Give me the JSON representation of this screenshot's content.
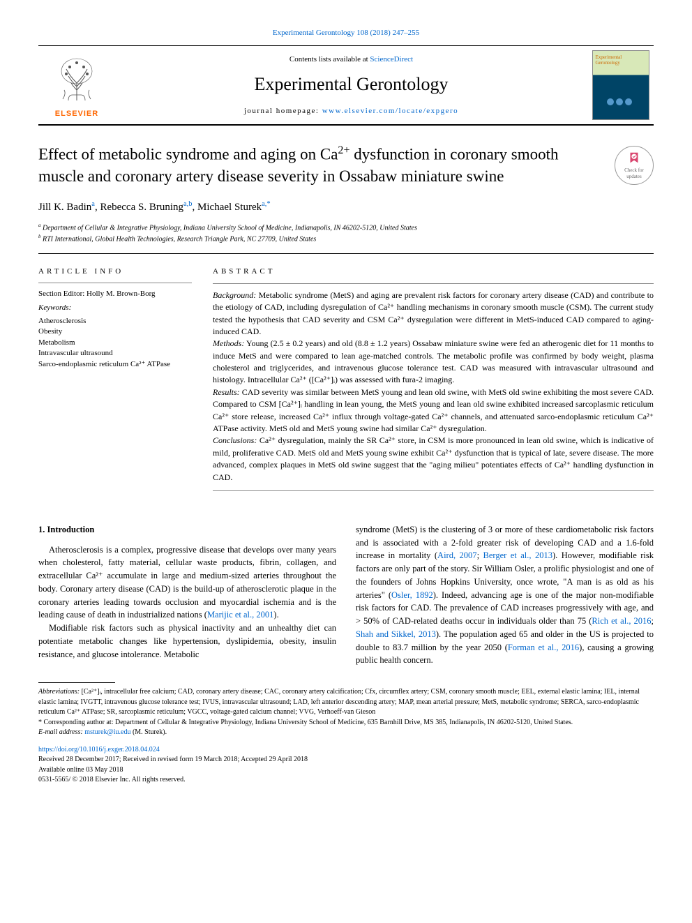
{
  "header": {
    "citation_prefix": "Experimental Gerontology 108 (2018) 247–255",
    "contents_prefix": "Contents lists available at ",
    "contents_link": "ScienceDirect",
    "journal_name": "Experimental Gerontology",
    "homepage_prefix": "journal homepage: ",
    "homepage_link": "www.elsevier.com/locate/expgero",
    "elsevier_word": "ELSEVIER",
    "cover_title": "Experimental Gerontology",
    "check_updates_line1": "Check for",
    "check_updates_line2": "updates"
  },
  "article": {
    "title_html": "Effect of metabolic syndrome and aging on Ca<sup>2+</sup> dysfunction in coronary smooth muscle and coronary artery disease severity in Ossabaw miniature swine",
    "authors_html": "Jill K. Badin<sup>a</sup>, Rebecca S. Bruning<sup>a,b</sup>, Michael Sturek<sup>a,*</sup>",
    "affiliations": [
      "Department of Cellular & Integrative Physiology, Indiana University School of Medicine, Indianapolis, IN 46202-5120, United States",
      "RTI International, Global Health Technologies, Research Triangle Park, NC 27709, United States"
    ],
    "affil_sups": [
      "a",
      "b"
    ]
  },
  "info": {
    "heading": "ARTICLE INFO",
    "section_editor_label": "Section Editor:",
    "section_editor": "Holly M. Brown-Borg",
    "keywords_label": "Keywords:",
    "keywords": [
      "Atherosclerosis",
      "Obesity",
      "Metabolism",
      "Intravascular ultrasound",
      "Sarco-endoplasmic reticulum Ca²⁺ ATPase"
    ]
  },
  "abstract": {
    "heading": "ABSTRACT",
    "background_label": "Background:",
    "background": "Metabolic syndrome (MetS) and aging are prevalent risk factors for coronary artery disease (CAD) and contribute to the etiology of CAD, including dysregulation of Ca²⁺ handling mechanisms in coronary smooth muscle (CSM). The current study tested the hypothesis that CAD severity and CSM Ca²⁺ dysregulation were different in MetS-induced CAD compared to aging-induced CAD.",
    "methods_label": "Methods:",
    "methods": "Young (2.5 ± 0.2 years) and old (8.8 ± 1.2 years) Ossabaw miniature swine were fed an atherogenic diet for 11 months to induce MetS and were compared to lean age-matched controls. The metabolic profile was confirmed by body weight, plasma cholesterol and triglycerides, and intravenous glucose tolerance test. CAD was measured with intravascular ultrasound and histology. Intracellular Ca²⁺ ([Ca²⁺]ᵢ) was assessed with fura-2 imaging.",
    "results_label": "Results:",
    "results": "CAD severity was similar between MetS young and lean old swine, with MetS old swine exhibiting the most severe CAD. Compared to CSM [Ca²⁺]ᵢ handling in lean young, the MetS young and lean old swine exhibited increased sarcoplasmic reticulum Ca²⁺ store release, increased Ca²⁺ influx through voltage-gated Ca²⁺ channels, and attenuated sarco-endoplasmic reticulum Ca²⁺ ATPase activity. MetS old and MetS young swine had similar Ca²⁺ dysregulation.",
    "conclusions_label": "Conclusions:",
    "conclusions": "Ca²⁺ dysregulation, mainly the SR Ca²⁺ store, in CSM is more pronounced in lean old swine, which is indicative of mild, proliferative CAD. MetS old and MetS young swine exhibit Ca²⁺ dysfunction that is typical of late, severe disease. The more advanced, complex plaques in MetS old swine suggest that the \"aging milieu\" potentiates effects of Ca²⁺ handling dysfunction in CAD."
  },
  "body": {
    "section1_heading": "1. Introduction",
    "col1": [
      "Atherosclerosis is a complex, progressive disease that develops over many years when cholesterol, fatty material, cellular waste products, fibrin, collagen, and extracellular Ca²⁺ accumulate in large and medium-sized arteries throughout the body. Coronary artery disease (CAD) is the build-up of atherosclerotic plaque in the coronary arteries leading towards occlusion and myocardial ischemia and is the leading cause of death in industrialized nations (Marijic et al., 2001).",
      "Modifiable risk factors such as physical inactivity and an unhealthy diet can potentiate metabolic changes like hypertension, dyslipidemia, obesity, insulin resistance, and glucose intolerance. Metabolic"
    ],
    "col2": [
      "syndrome (MetS) is the clustering of 3 or more of these cardiometabolic risk factors and is associated with a 2-fold greater risk of developing CAD and a 1.6-fold increase in mortality (Aird, 2007; Berger et al., 2013). However, modifiable risk factors are only part of the story. Sir William Osler, a prolific physiologist and one of the founders of Johns Hopkins University, once wrote, \"A man is as old as his arteries\" (Osler, 1892). Indeed, advancing age is one of the major non-modifiable risk factors for CAD. The prevalence of CAD increases progressively with age, and > 50% of CAD-related deaths occur in individuals older than 75 (Rich et al., 2016; Shah and Sikkel, 2013). The population aged 65 and older in the US is projected to double to 83.7 million by the year 2050 (Forman et al., 2016), causing a growing public health concern."
    ],
    "col1_links": [
      "Marijic et al., 2001"
    ],
    "col2_links": [
      "Aird, 2007",
      "Berger et al., 2013",
      "Osler, 1892",
      "Rich et al., 2016",
      "Shah and Sikkel, 2013",
      "Forman et al., 2016"
    ]
  },
  "footer": {
    "abbrev_label": "Abbreviations:",
    "abbrev_text": "[Ca²⁺]ᵢ, intracellular free calcium; CAD, coronary artery disease; CAC, coronary artery calcification; Cfx, circumflex artery; CSM, coronary smooth muscle; EEL, external elastic lamina; IEL, internal elastic lamina; IVGTT, intravenous glucose tolerance test; IVUS, intravascular ultrasound; LAD, left anterior descending artery; MAP, mean arterial pressure; MetS, metabolic syndrome; SERCA, sarco-endoplasmic reticulum Ca²⁺ ATPase; SR, sarcoplasmic reticulum; VGCC, voltage-gated calcium channel; VVG, Verhoeff-van Gieson",
    "corr_label": "* Corresponding author at:",
    "corr_text": "Department of Cellular & Integrative Physiology, Indiana University School of Medicine, 635 Barnhill Drive, MS 385, Indianapolis, IN 46202-5120, United States.",
    "email_label": "E-mail address:",
    "email": "msturek@iu.edu",
    "email_who": "(M. Sturek).",
    "doi": "https://doi.org/10.1016/j.exger.2018.04.024",
    "received": "Received 28 December 2017; Received in revised form 19 March 2018; Accepted 29 April 2018",
    "available": "Available online 03 May 2018",
    "copyright": "0531-5565/ © 2018 Elsevier Inc. All rights reserved."
  },
  "colors": {
    "link": "#0066cc",
    "elsevier_orange": "#ff6600",
    "author_sup": "#0066cc"
  }
}
